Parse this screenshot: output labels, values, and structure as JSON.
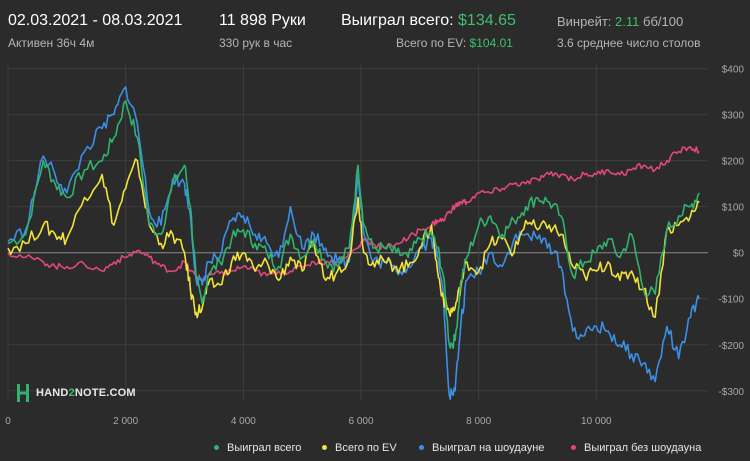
{
  "header": {
    "date_range": "02.03.2021 - 08.03.2021",
    "active_time": "Активен 36ч 4м",
    "hands": "11 898 Руки",
    "hands_per_hour": "330 рук в час",
    "total_won_label": "Выиграл всего:",
    "total_won_value": "$134.65",
    "ev_label": "Всего по EV:",
    "ev_value": "$104.01",
    "winrate_label": "Винрейт:",
    "winrate_value": "2.11",
    "winrate_unit": "бб/100",
    "avg_tables": "3.6 среднее число столов"
  },
  "logo": {
    "text_pre": "HAND",
    "text_num": "2",
    "text_post": "NOTE.COM"
  },
  "colors": {
    "background": "#2b2b2b",
    "grid": "#3d3d3d",
    "zero_line": "#8a8a8a",
    "tick_text": "#a8a8a8",
    "accent_green": "#3fbf6f"
  },
  "chart_data": {
    "type": "line",
    "title": "",
    "xlabel": "",
    "ylabel": "",
    "xlim": [
      0,
      11898
    ],
    "ylim": [
      -320,
      410
    ],
    "x_ticks": [
      0,
      2000,
      4000,
      6000,
      8000,
      10000
    ],
    "x_tick_labels": [
      "0",
      "2 000",
      "4 000",
      "6 000",
      "8 000",
      "10 000"
    ],
    "y_ticks": [
      400,
      300,
      200,
      100,
      0,
      -100,
      -200,
      -300
    ],
    "y_tick_labels": [
      "$400",
      "$300",
      "$200",
      "$100",
      "$0",
      "-$100",
      "-$200",
      "-$300"
    ],
    "grid": true,
    "legend_position": "bottom",
    "series": [
      {
        "name": "Выиграл всего",
        "color": "#2fb36e",
        "x": [
          0,
          300,
          600,
          800,
          1000,
          1300,
          1600,
          1800,
          2000,
          2200,
          2400,
          2600,
          2800,
          3000,
          3100,
          3200,
          3300,
          3400,
          3600,
          3800,
          4000,
          4200,
          4400,
          4600,
          4800,
          5000,
          5200,
          5400,
          5600,
          5800,
          5950,
          6050,
          6200,
          6400,
          6600,
          6800,
          7000,
          7200,
          7300,
          7400,
          7500,
          7600,
          7700,
          7800,
          8000,
          8200,
          8400,
          8600,
          8800,
          9000,
          9200,
          9400,
          9600,
          9800,
          10000,
          10200,
          10400,
          10600,
          10800,
          11000,
          11200,
          11400,
          11600,
          11750
        ],
        "values": [
          20,
          40,
          200,
          150,
          120,
          180,
          200,
          250,
          330,
          250,
          60,
          40,
          150,
          190,
          100,
          -60,
          -110,
          -50,
          -20,
          30,
          50,
          20,
          0,
          -30,
          40,
          -10,
          30,
          -20,
          -30,
          10,
          190,
          60,
          10,
          10,
          0,
          -10,
          30,
          40,
          10,
          -50,
          -200,
          -190,
          -60,
          -10,
          60,
          80,
          40,
          70,
          100,
          120,
          110,
          80,
          -50,
          -20,
          0,
          30,
          -10,
          40,
          -80,
          -90,
          50,
          80,
          100,
          130
        ]
      },
      {
        "name": "Всего по EV",
        "color": "#f2e33a",
        "x": [
          0,
          300,
          600,
          800,
          1000,
          1300,
          1600,
          1800,
          2000,
          2200,
          2400,
          2600,
          2800,
          3000,
          3100,
          3200,
          3300,
          3400,
          3600,
          3800,
          4000,
          4200,
          4400,
          4600,
          4800,
          5000,
          5200,
          5400,
          5600,
          5800,
          5950,
          6050,
          6200,
          6400,
          6600,
          6800,
          7000,
          7200,
          7300,
          7400,
          7500,
          7600,
          7700,
          7800,
          8000,
          8200,
          8400,
          8600,
          8800,
          9000,
          9200,
          9400,
          9600,
          9800,
          10000,
          10200,
          10400,
          10600,
          10800,
          11000,
          11200,
          11400,
          11600,
          11750
        ],
        "values": [
          10,
          20,
          60,
          40,
          30,
          120,
          170,
          60,
          140,
          200,
          60,
          20,
          40,
          0,
          -80,
          -130,
          -120,
          -70,
          -70,
          -20,
          0,
          -40,
          -20,
          -60,
          -10,
          -40,
          20,
          -60,
          -40,
          -10,
          120,
          0,
          -20,
          -20,
          -30,
          -30,
          10,
          60,
          -40,
          -100,
          -130,
          -120,
          -70,
          -20,
          -40,
          20,
          30,
          0,
          70,
          50,
          60,
          40,
          -30,
          -50,
          -40,
          -20,
          -60,
          -40,
          -80,
          -140,
          50,
          60,
          80,
          110
        ]
      },
      {
        "name": "Выиграл на шоудауне",
        "color": "#3b8fe6",
        "x": [
          0,
          300,
          600,
          800,
          1000,
          1300,
          1600,
          1800,
          2000,
          2200,
          2400,
          2600,
          2800,
          3000,
          3100,
          3200,
          3300,
          3400,
          3600,
          3800,
          4000,
          4200,
          4400,
          4600,
          4800,
          5000,
          5200,
          5400,
          5600,
          5800,
          5950,
          6050,
          6200,
          6400,
          6600,
          6800,
          7000,
          7200,
          7300,
          7400,
          7500,
          7600,
          7700,
          7800,
          8000,
          8200,
          8400,
          8600,
          8800,
          9000,
          9200,
          9400,
          9600,
          9800,
          10000,
          10200,
          10400,
          10600,
          10800,
          11000,
          11200,
          11400,
          11600,
          11750
        ],
        "values": [
          25,
          50,
          210,
          170,
          130,
          220,
          270,
          300,
          360,
          280,
          90,
          60,
          160,
          150,
          80,
          -60,
          -70,
          -20,
          -10,
          70,
          80,
          40,
          20,
          -10,
          100,
          10,
          40,
          10,
          -20,
          -20,
          170,
          40,
          -20,
          -20,
          -40,
          -30,
          10,
          30,
          -10,
          -90,
          -310,
          -300,
          -150,
          -60,
          -40,
          0,
          -30,
          30,
          40,
          30,
          20,
          -30,
          -170,
          -180,
          -160,
          -170,
          -200,
          -220,
          -240,
          -280,
          -160,
          -230,
          -140,
          -100
        ]
      },
      {
        "name": "Выиграл без шоудауна",
        "color": "#e14778",
        "x": [
          0,
          300,
          600,
          800,
          1000,
          1300,
          1600,
          1800,
          2000,
          2200,
          2400,
          2600,
          2800,
          3000,
          3100,
          3200,
          3300,
          3400,
          3600,
          3800,
          4000,
          4200,
          4400,
          4600,
          4800,
          5000,
          5200,
          5400,
          5600,
          5800,
          5950,
          6050,
          6200,
          6400,
          6600,
          6800,
          7000,
          7200,
          7300,
          7400,
          7500,
          7600,
          7700,
          7800,
          8000,
          8200,
          8400,
          8600,
          8800,
          9000,
          9200,
          9400,
          9600,
          9800,
          10000,
          10200,
          10400,
          10600,
          10800,
          11000,
          11200,
          11400,
          11600,
          11750
        ],
        "values": [
          0,
          -10,
          -20,
          -30,
          -30,
          -25,
          -40,
          -20,
          -10,
          5,
          -10,
          -30,
          -40,
          -20,
          -40,
          -50,
          -60,
          -50,
          -45,
          -40,
          -30,
          -40,
          -50,
          -40,
          -40,
          -30,
          -20,
          -20,
          -20,
          0,
          10,
          30,
          20,
          10,
          20,
          30,
          50,
          60,
          70,
          70,
          90,
          100,
          110,
          110,
          130,
          130,
          140,
          150,
          150,
          160,
          170,
          170,
          160,
          170,
          170,
          180,
          170,
          180,
          190,
          180,
          200,
          220,
          230,
          220
        ]
      }
    ]
  }
}
